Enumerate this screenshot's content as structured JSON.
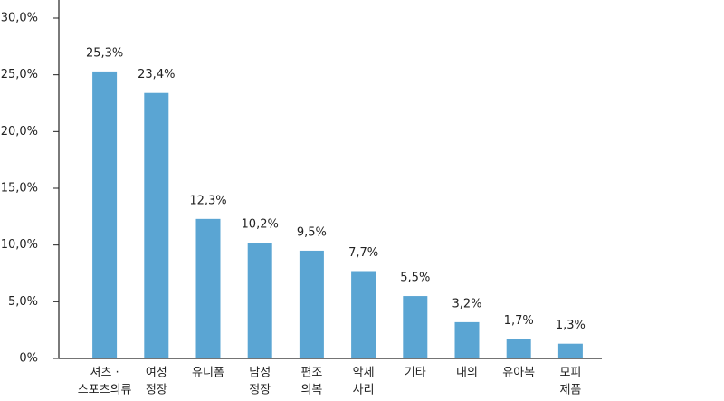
{
  "chart_data": {
    "type": "bar",
    "categories": [
      [
        "셔츠 ·",
        "스포츠의류"
      ],
      [
        "여성",
        "정장"
      ],
      [
        "유니폼"
      ],
      [
        "남성",
        "정장"
      ],
      [
        "편조",
        "의복"
      ],
      [
        "악세",
        "사리"
      ],
      [
        "기타"
      ],
      [
        "내의"
      ],
      [
        "유아복"
      ],
      [
        "모피",
        "제품"
      ]
    ],
    "values": [
      25.3,
      23.4,
      12.3,
      10.2,
      9.5,
      7.7,
      5.5,
      3.2,
      1.7,
      1.3
    ],
    "value_labels": [
      "25,3%",
      "23,4%",
      "12,3%",
      "10,2%",
      "9,5%",
      "7,7%",
      "5,5%",
      "3,2%",
      "1,7%",
      "1,3%"
    ],
    "color": "#5aa5d3",
    "ylim": [
      0,
      30
    ],
    "yticks": [
      {
        "value": 0,
        "label": "0%"
      },
      {
        "value": 5,
        "label": "5,0%"
      },
      {
        "value": 10,
        "label": "10,0%"
      },
      {
        "value": 15,
        "label": "15,0%"
      },
      {
        "value": 20,
        "label": "20,0%"
      },
      {
        "value": 25,
        "label": "25,0%"
      },
      {
        "value": 30,
        "label": "30,0%"
      }
    ]
  }
}
